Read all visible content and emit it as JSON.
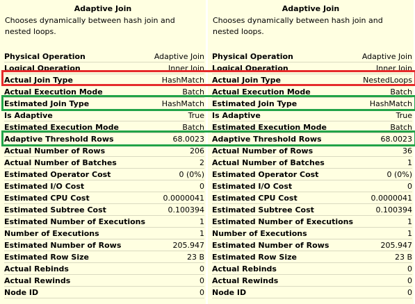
{
  "panels": [
    {
      "title": "Adaptive Join",
      "description": "Chooses dynamically between hash join and nested loops.",
      "rows": [
        [
          "Physical Operation",
          "Adaptive Join"
        ],
        [
          "Logical Operation",
          "Inner Join"
        ],
        [
          "Actual Join Type",
          "HashMatch"
        ],
        [
          "Actual Execution Mode",
          "Batch"
        ],
        [
          "Estimated Join Type",
          "HashMatch"
        ],
        [
          "Is Adaptive",
          "True"
        ],
        [
          "Estimated Execution Mode",
          "Batch"
        ],
        [
          "Adaptive Threshold Rows",
          "68.0023"
        ],
        [
          "Actual Number of Rows",
          "206"
        ],
        [
          "Actual Number of Batches",
          "2"
        ],
        [
          "Estimated Operator Cost",
          "0 (0%)"
        ],
        [
          "Estimated I/O Cost",
          "0"
        ],
        [
          "Estimated CPU Cost",
          "0.0000041"
        ],
        [
          "Estimated Subtree Cost",
          "0.100394"
        ],
        [
          "Estimated Number of Executions",
          "1"
        ],
        [
          "Number of Executions",
          "1"
        ],
        [
          "Estimated Number of Rows",
          "205.947"
        ],
        [
          "Estimated Row Size",
          "23 B"
        ],
        [
          "Actual Rebinds",
          "0"
        ],
        [
          "Actual Rewinds",
          "0"
        ],
        [
          "Node ID",
          "0"
        ]
      ]
    },
    {
      "title": "Adaptive Join",
      "description": "Chooses dynamically between hash join and nested loops.",
      "rows": [
        [
          "Physical Operation",
          "Adaptive Join"
        ],
        [
          "Logical Operation",
          "Inner Join"
        ],
        [
          "Actual Join Type",
          "NestedLoops"
        ],
        [
          "Actual Execution Mode",
          "Batch"
        ],
        [
          "Estimated Join Type",
          "HashMatch"
        ],
        [
          "Is Adaptive",
          "True"
        ],
        [
          "Estimated Execution Mode",
          "Batch"
        ],
        [
          "Adaptive Threshold Rows",
          "68.0023"
        ],
        [
          "Actual Number of Rows",
          "36"
        ],
        [
          "Actual Number of Batches",
          "1"
        ],
        [
          "Estimated Operator Cost",
          "0 (0%)"
        ],
        [
          "Estimated I/O Cost",
          "0"
        ],
        [
          "Estimated CPU Cost",
          "0.0000041"
        ],
        [
          "Estimated Subtree Cost",
          "0.100394"
        ],
        [
          "Estimated Number of Executions",
          "1"
        ],
        [
          "Number of Executions",
          "1"
        ],
        [
          "Estimated Number of Rows",
          "205.947"
        ],
        [
          "Estimated Row Size",
          "23 B"
        ],
        [
          "Actual Rebinds",
          "0"
        ],
        [
          "Actual Rewinds",
          "0"
        ],
        [
          "Node ID",
          "0"
        ]
      ]
    }
  ]
}
